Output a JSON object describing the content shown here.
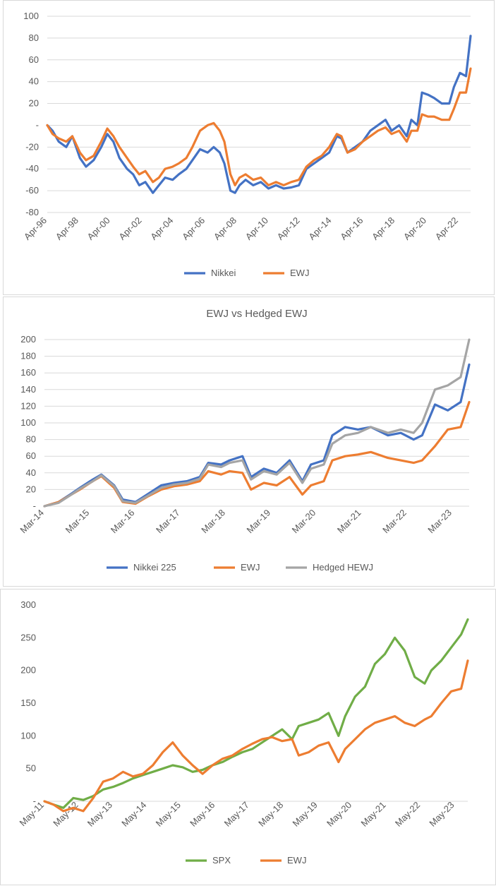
{
  "chart_data": [
    {
      "type": "line",
      "title": "",
      "xlabel": "",
      "ylabel": "",
      "ylim": [
        -80,
        100
      ],
      "yticks": [
        "100",
        "80",
        "60",
        "40",
        "20",
        "-",
        "-20",
        "-40",
        "-60",
        "-80"
      ],
      "xticks": [
        "Apr-96",
        "Apr-98",
        "Apr-00",
        "Apr-02",
        "Apr-04",
        "Apr-06",
        "Apr-08",
        "Apr-10",
        "Apr-12",
        "Apr-14",
        "Apr-16",
        "Apr-18",
        "Apr-20",
        "Apr-22"
      ],
      "x_range": [
        1996.25,
        2024.1
      ],
      "grid": true,
      "legend": "bottom",
      "series": [
        {
          "name": "Nikkei",
          "color": "#4472C4",
          "x": [
            1996.25,
            1996.6,
            1997.0,
            1997.5,
            1997.9,
            1998.4,
            1998.8,
            1999.3,
            1999.8,
            2000.2,
            2000.6,
            2001.0,
            2001.5,
            2001.9,
            2002.3,
            2002.7,
            2003.2,
            2003.6,
            2004.0,
            2004.5,
            2004.9,
            2005.4,
            2005.8,
            2006.3,
            2006.8,
            2007.2,
            2007.6,
            2007.9,
            2008.3,
            2008.6,
            2008.9,
            2009.3,
            2009.8,
            2010.3,
            2010.8,
            2011.3,
            2011.8,
            2012.3,
            2012.8,
            2013.3,
            2013.8,
            2014.3,
            2014.8,
            2015.3,
            2015.6,
            2016.0,
            2016.5,
            2017.0,
            2017.5,
            2018.0,
            2018.5,
            2018.9,
            2019.4,
            2019.9,
            2020.2,
            2020.6,
            2020.9,
            2021.3,
            2021.7,
            2022.2,
            2022.7,
            2023.0,
            2023.4,
            2023.8,
            2024.1
          ],
          "values": [
            0,
            -5,
            -15,
            -20,
            -10,
            -30,
            -38,
            -32,
            -20,
            -8,
            -15,
            -30,
            -40,
            -45,
            -55,
            -52,
            -62,
            -55,
            -48,
            -50,
            -45,
            -40,
            -32,
            -22,
            -25,
            -20,
            -25,
            -35,
            -60,
            -62,
            -55,
            -50,
            -55,
            -52,
            -58,
            -55,
            -58,
            -57,
            -55,
            -40,
            -35,
            -30,
            -25,
            -10,
            -12,
            -25,
            -20,
            -15,
            -5,
            0,
            5,
            -5,
            0,
            -10,
            5,
            0,
            30,
            28,
            25,
            20,
            20,
            35,
            48,
            45,
            82
          ]
        },
        {
          "name": "EWJ",
          "color": "#ED7D31",
          "x": [
            1996.25,
            1996.6,
            1997.0,
            1997.5,
            1997.9,
            1998.4,
            1998.8,
            1999.3,
            1999.8,
            2000.2,
            2000.6,
            2001.0,
            2001.5,
            2001.9,
            2002.3,
            2002.7,
            2003.2,
            2003.6,
            2004.0,
            2004.5,
            2004.9,
            2005.4,
            2005.8,
            2006.3,
            2006.8,
            2007.2,
            2007.6,
            2007.9,
            2008.3,
            2008.6,
            2008.9,
            2009.3,
            2009.8,
            2010.3,
            2010.8,
            2011.3,
            2011.8,
            2012.3,
            2012.8,
            2013.3,
            2013.8,
            2014.3,
            2014.8,
            2015.3,
            2015.6,
            2016.0,
            2016.5,
            2017.0,
            2017.5,
            2018.0,
            2018.5,
            2018.9,
            2019.4,
            2019.9,
            2020.2,
            2020.6,
            2020.9,
            2021.3,
            2021.7,
            2022.2,
            2022.7,
            2023.0,
            2023.4,
            2023.8,
            2024.1
          ],
          "values": [
            0,
            -8,
            -12,
            -15,
            -10,
            -25,
            -32,
            -28,
            -15,
            -3,
            -10,
            -20,
            -30,
            -38,
            -45,
            -42,
            -52,
            -48,
            -40,
            -38,
            -35,
            -30,
            -20,
            -5,
            0,
            2,
            -5,
            -15,
            -45,
            -55,
            -48,
            -45,
            -50,
            -48,
            -55,
            -52,
            -55,
            -52,
            -50,
            -38,
            -32,
            -28,
            -20,
            -8,
            -10,
            -25,
            -22,
            -15,
            -10,
            -5,
            -2,
            -8,
            -5,
            -15,
            -5,
            -5,
            10,
            8,
            8,
            5,
            5,
            15,
            30,
            30,
            52
          ]
        }
      ]
    },
    {
      "type": "line",
      "title": "EWJ vs Hedged EWJ",
      "xlabel": "",
      "ylabel": "",
      "ylim": [
        0,
        200
      ],
      "yticks": [
        "200",
        "180",
        "160",
        "140",
        "120",
        "100",
        "80",
        "60",
        "40",
        "20",
        "-"
      ],
      "xticks": [
        "Mar-14",
        "Mar-15",
        "Mar-16",
        "Mar-17",
        "Mar-18",
        "Mar-19",
        "Mar-20",
        "Mar-21",
        "Mar-22",
        "Mar-23"
      ],
      "x_range": [
        2014.17,
        2024.1
      ],
      "grid": true,
      "legend": "bottom",
      "series": [
        {
          "name": "Nikkei 225",
          "color": "#4472C4",
          "x": [
            2014.17,
            2014.5,
            2014.8,
            2015.0,
            2015.3,
            2015.5,
            2015.8,
            2016.0,
            2016.3,
            2016.6,
            2016.9,
            2017.2,
            2017.5,
            2017.8,
            2018.0,
            2018.3,
            2018.5,
            2018.8,
            2019.0,
            2019.3,
            2019.6,
            2019.9,
            2020.2,
            2020.4,
            2020.7,
            2020.9,
            2021.2,
            2021.5,
            2021.8,
            2022.2,
            2022.5,
            2022.8,
            2023.0,
            2023.3,
            2023.6,
            2023.9,
            2024.1
          ],
          "values": [
            0,
            5,
            15,
            22,
            32,
            38,
            25,
            8,
            5,
            15,
            25,
            28,
            30,
            35,
            52,
            50,
            55,
            60,
            35,
            45,
            40,
            55,
            30,
            50,
            55,
            85,
            95,
            92,
            95,
            85,
            88,
            80,
            85,
            122,
            115,
            125,
            170
          ]
        },
        {
          "name": "EWJ",
          "color": "#ED7D31",
          "x": [
            2014.17,
            2014.5,
            2014.8,
            2015.0,
            2015.3,
            2015.5,
            2015.8,
            2016.0,
            2016.3,
            2016.6,
            2016.9,
            2017.2,
            2017.5,
            2017.8,
            2018.0,
            2018.3,
            2018.5,
            2018.8,
            2019.0,
            2019.3,
            2019.6,
            2019.9,
            2020.2,
            2020.4,
            2020.7,
            2020.9,
            2021.2,
            2021.5,
            2021.8,
            2022.2,
            2022.5,
            2022.8,
            2023.0,
            2023.3,
            2023.6,
            2023.9,
            2024.1
          ],
          "values": [
            0,
            5,
            14,
            20,
            30,
            36,
            22,
            5,
            3,
            12,
            20,
            24,
            26,
            30,
            42,
            38,
            42,
            40,
            20,
            28,
            25,
            35,
            14,
            25,
            30,
            55,
            60,
            62,
            65,
            58,
            55,
            52,
            55,
            72,
            92,
            95,
            125
          ]
        },
        {
          "name": "Hedged HEWJ",
          "color": "#A5A5A5",
          "x": [
            2014.17,
            2014.5,
            2014.8,
            2015.0,
            2015.3,
            2015.5,
            2015.8,
            2016.0,
            2016.3,
            2016.6,
            2016.9,
            2017.2,
            2017.5,
            2017.8,
            2018.0,
            2018.3,
            2018.5,
            2018.8,
            2019.0,
            2019.3,
            2019.6,
            2019.9,
            2020.2,
            2020.4,
            2020.7,
            2020.9,
            2021.2,
            2021.5,
            2021.8,
            2022.2,
            2022.5,
            2022.8,
            2023.0,
            2023.3,
            2023.6,
            2023.9,
            2024.1
          ],
          "values": [
            0,
            4,
            14,
            21,
            30,
            37,
            24,
            6,
            4,
            13,
            22,
            26,
            28,
            33,
            50,
            47,
            52,
            55,
            32,
            42,
            38,
            52,
            28,
            45,
            50,
            75,
            85,
            88,
            95,
            88,
            92,
            88,
            100,
            140,
            145,
            155,
            200
          ]
        }
      ]
    },
    {
      "type": "line",
      "title": "",
      "xlabel": "",
      "ylabel": "",
      "ylim": [
        0,
        300
      ],
      "yticks": [
        "300",
        "250",
        "200",
        "150",
        "100",
        "50",
        "-"
      ],
      "xticks": [
        "May-11",
        "May-12",
        "May-13",
        "May-14",
        "May-15",
        "May-16",
        "May-17",
        "May-18",
        "May-19",
        "May-20",
        "May-21",
        "May-22",
        "May-23"
      ],
      "x_range": [
        2011.33,
        2024.1
      ],
      "grid": false,
      "legend": "bottom",
      "series": [
        {
          "name": "SPX",
          "color": "#70AD47",
          "x": [
            2011.33,
            2011.6,
            2011.9,
            2012.2,
            2012.5,
            2012.8,
            2013.1,
            2013.4,
            2013.7,
            2014.0,
            2014.3,
            2014.6,
            2014.9,
            2015.2,
            2015.5,
            2015.8,
            2016.1,
            2016.4,
            2016.7,
            2017.0,
            2017.3,
            2017.6,
            2017.9,
            2018.2,
            2018.5,
            2018.8,
            2019.0,
            2019.3,
            2019.6,
            2019.9,
            2020.2,
            2020.4,
            2020.7,
            2021.0,
            2021.3,
            2021.6,
            2021.9,
            2022.2,
            2022.5,
            2022.8,
            2023.0,
            2023.3,
            2023.6,
            2023.9,
            2024.1
          ],
          "values": [
            0,
            -5,
            -10,
            5,
            2,
            8,
            18,
            22,
            28,
            35,
            40,
            45,
            50,
            55,
            52,
            45,
            48,
            55,
            60,
            68,
            75,
            80,
            90,
            100,
            110,
            95,
            115,
            120,
            125,
            135,
            100,
            130,
            160,
            175,
            210,
            225,
            250,
            230,
            190,
            180,
            200,
            215,
            235,
            255,
            278
          ]
        },
        {
          "name": "EWJ",
          "color": "#ED7D31",
          "x": [
            2011.33,
            2011.6,
            2011.9,
            2012.2,
            2012.5,
            2012.8,
            2013.1,
            2013.4,
            2013.7,
            2014.0,
            2014.3,
            2014.6,
            2014.9,
            2015.2,
            2015.5,
            2015.8,
            2016.1,
            2016.4,
            2016.7,
            2017.0,
            2017.3,
            2017.6,
            2017.9,
            2018.2,
            2018.5,
            2018.8,
            2019.0,
            2019.3,
            2019.6,
            2019.9,
            2020.2,
            2020.4,
            2020.7,
            2021.0,
            2021.3,
            2021.6,
            2021.9,
            2022.2,
            2022.5,
            2022.8,
            2023.0,
            2023.3,
            2023.6,
            2023.9,
            2024.1
          ],
          "values": [
            0,
            -5,
            -15,
            -10,
            -15,
            5,
            30,
            35,
            45,
            38,
            42,
            55,
            75,
            90,
            70,
            55,
            42,
            55,
            65,
            70,
            80,
            88,
            95,
            98,
            92,
            95,
            70,
            75,
            85,
            90,
            60,
            80,
            95,
            110,
            120,
            125,
            130,
            120,
            115,
            125,
            130,
            150,
            168,
            172,
            215
          ]
        }
      ]
    }
  ]
}
